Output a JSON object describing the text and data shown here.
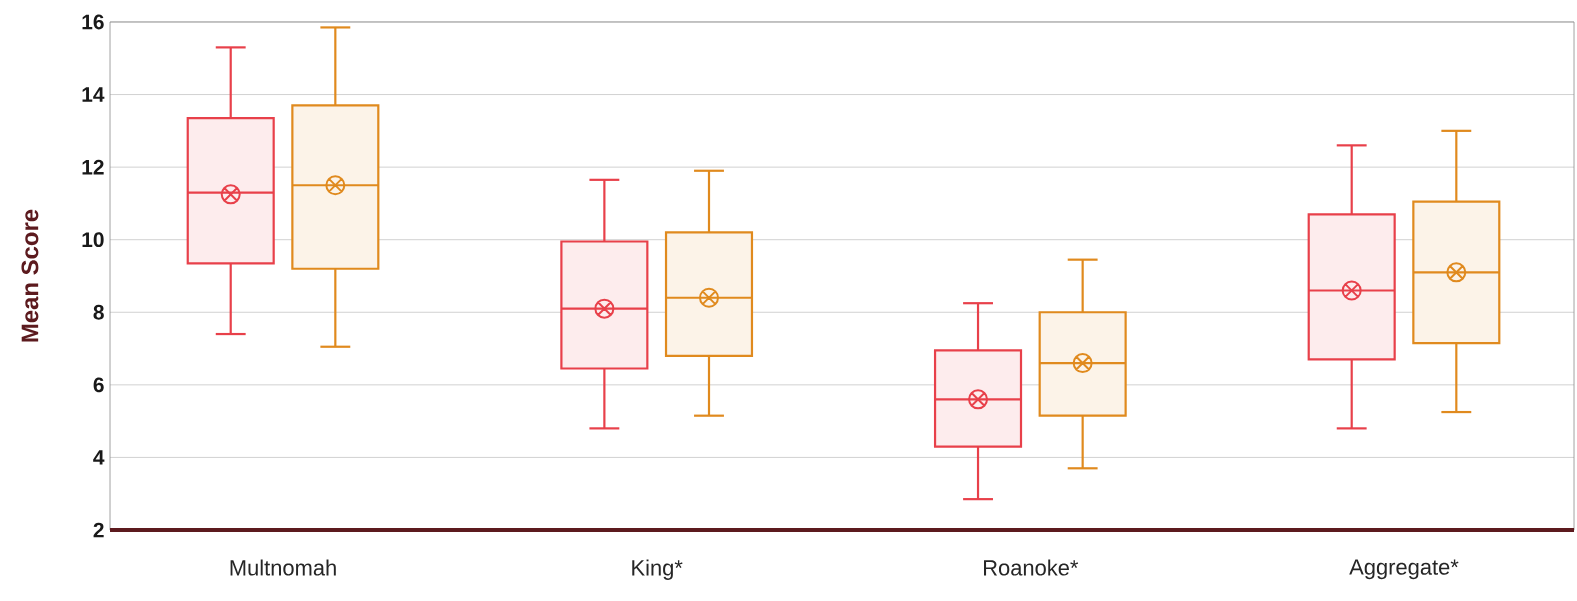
{
  "chart_data": {
    "type": "box",
    "ylabel": "Mean Score",
    "categories": [
      "Multnomah",
      "King*",
      "Roanoke*",
      "Aggregate*"
    ],
    "ylim": [
      2,
      16
    ],
    "yticks": [
      2,
      4,
      6,
      8,
      10,
      12,
      14,
      16
    ],
    "grid": "y",
    "series": [
      {
        "color": "#e8404a",
        "boxes": [
          {
            "low": 7.4,
            "q1": 9.35,
            "median": 11.3,
            "q3": 13.35,
            "high": 15.3,
            "mean": 11.25
          },
          {
            "low": 4.8,
            "q1": 6.45,
            "median": 8.1,
            "q3": 9.95,
            "high": 11.65,
            "mean": 8.1
          },
          {
            "low": 2.85,
            "q1": 4.3,
            "median": 5.6,
            "q3": 6.95,
            "high": 8.25,
            "mean": 5.6
          },
          {
            "low": 4.8,
            "q1": 6.7,
            "median": 8.6,
            "q3": 10.7,
            "high": 12.6,
            "mean": 8.6
          }
        ]
      },
      {
        "color": "#e08a1e",
        "boxes": [
          {
            "low": 7.05,
            "q1": 9.2,
            "median": 11.5,
            "q3": 13.7,
            "high": 15.85,
            "mean": 11.5
          },
          {
            "low": 5.15,
            "q1": 6.8,
            "median": 8.4,
            "q3": 10.2,
            "high": 11.9,
            "mean": 8.4
          },
          {
            "low": 3.7,
            "q1": 5.15,
            "median": 6.6,
            "q3": 8.0,
            "high": 9.45,
            "mean": 6.6
          },
          {
            "low": 5.25,
            "q1": 7.15,
            "median": 9.1,
            "q3": 11.05,
            "high": 13.0,
            "mean": 9.1
          }
        ]
      }
    ]
  }
}
